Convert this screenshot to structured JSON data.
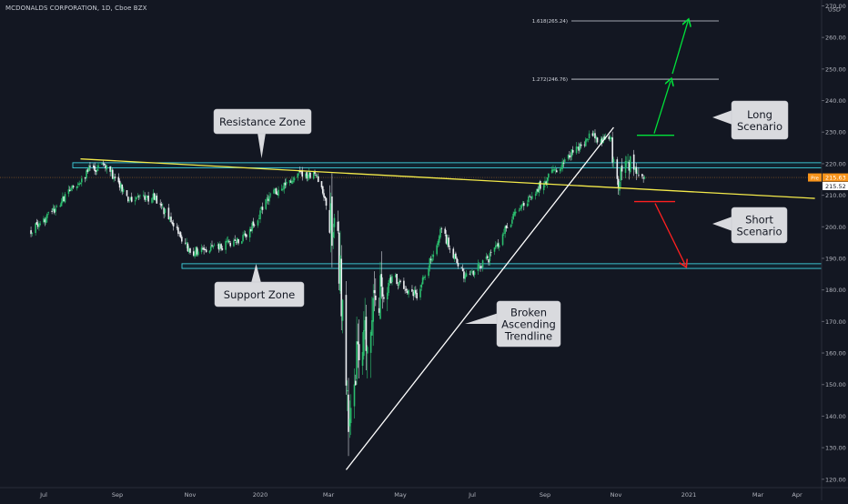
{
  "header": {
    "symbol": "MCDONALDS CORPORATION, 1D, Cboe BZX"
  },
  "chart_data": {
    "type": "candlestick",
    "currency": "USD",
    "y_ticks": [
      270,
      260,
      250,
      240,
      230,
      220,
      210,
      200,
      190,
      180,
      170,
      160,
      150,
      140,
      130,
      120
    ],
    "ylim": [
      118.5,
      271
    ],
    "x_ticks": [
      "Jul",
      "Sep",
      "Nov",
      "2020",
      "Mar",
      "May",
      "Jul",
      "Sep",
      "Nov",
      "2021",
      "Mar",
      "Apr"
    ],
    "price_labels": {
      "current": "215.63",
      "prev_close": "215.52",
      "prefix": "Pre"
    },
    "current_price": 215.63,
    "prev_close": 215.52,
    "fib_levels": [
      {
        "label": "1.618(265.24)",
        "value": 265.24
      },
      {
        "label": "1.272(246.76)",
        "value": 246.76
      }
    ],
    "zones": [
      {
        "name": "Resistance Zone",
        "low": 218.7,
        "high": 220.3
      },
      {
        "name": "Support Zone",
        "low": 186.8,
        "high": 188.3
      }
    ],
    "callouts": {
      "resistance": "Resistance Zone",
      "support": "Support Zone",
      "trendline": [
        "Broken",
        "Ascending",
        "Trendline"
      ],
      "long": [
        "Long",
        "Scenario"
      ],
      "short": [
        "Short",
        "Scenario"
      ]
    },
    "close_series": [
      {
        "date": "2019-06-20",
        "close": 198.5
      },
      {
        "date": "2019-07-10",
        "close": 205.0
      },
      {
        "date": "2019-07-25",
        "close": 212.0
      },
      {
        "date": "2019-08-08",
        "close": 217.5
      },
      {
        "date": "2019-08-22",
        "close": 219.5
      },
      {
        "date": "2019-09-10",
        "close": 209.0
      },
      {
        "date": "2019-10-01",
        "close": 209.5
      },
      {
        "date": "2019-10-20",
        "close": 200.0
      },
      {
        "date": "2019-11-01",
        "close": 192.0
      },
      {
        "date": "2019-11-25",
        "close": 193.5
      },
      {
        "date": "2019-12-20",
        "close": 197.0
      },
      {
        "date": "2020-01-10",
        "close": 210.0
      },
      {
        "date": "2020-02-05",
        "close": 216.5
      },
      {
        "date": "2020-02-20",
        "close": 216.0
      },
      {
        "date": "2020-03-05",
        "close": 200.0
      },
      {
        "date": "2020-03-10",
        "close": 190.0
      },
      {
        "date": "2020-03-18",
        "close": 134.0
      },
      {
        "date": "2020-03-25",
        "close": 157.0
      },
      {
        "date": "2020-04-10",
        "close": 180.0
      },
      {
        "date": "2020-04-25",
        "close": 184.0
      },
      {
        "date": "2020-05-15",
        "close": 178.0
      },
      {
        "date": "2020-06-05",
        "close": 199.0
      },
      {
        "date": "2020-06-25",
        "close": 184.0
      },
      {
        "date": "2020-07-15",
        "close": 190.0
      },
      {
        "date": "2020-08-05",
        "close": 203.0
      },
      {
        "date": "2020-08-25",
        "close": 212.0
      },
      {
        "date": "2020-09-05",
        "close": 216.0
      },
      {
        "date": "2020-09-20",
        "close": 222.0
      },
      {
        "date": "2020-10-10",
        "close": 229.0
      },
      {
        "date": "2020-10-28",
        "close": 226.5
      },
      {
        "date": "2020-11-01",
        "close": 213.0
      },
      {
        "date": "2020-11-10",
        "close": 221.0
      },
      {
        "date": "2020-11-25",
        "close": 215.6
      }
    ],
    "drawings": {
      "descending_yellow_line": [
        {
          "date": "2019-08-01",
          "price": 221.5
        },
        {
          "date": "2021-04-15",
          "price": 209.0
        }
      ],
      "ascending_trendline": [
        {
          "date": "2020-03-16",
          "price": 123.0
        },
        {
          "date": "2020-10-30",
          "price": 231.5
        }
      ],
      "long_target": {
        "date": "2020-12-10",
        "price": 265.0
      },
      "short_target": {
        "date": "2020-12-20",
        "price": 188.0
      }
    }
  }
}
